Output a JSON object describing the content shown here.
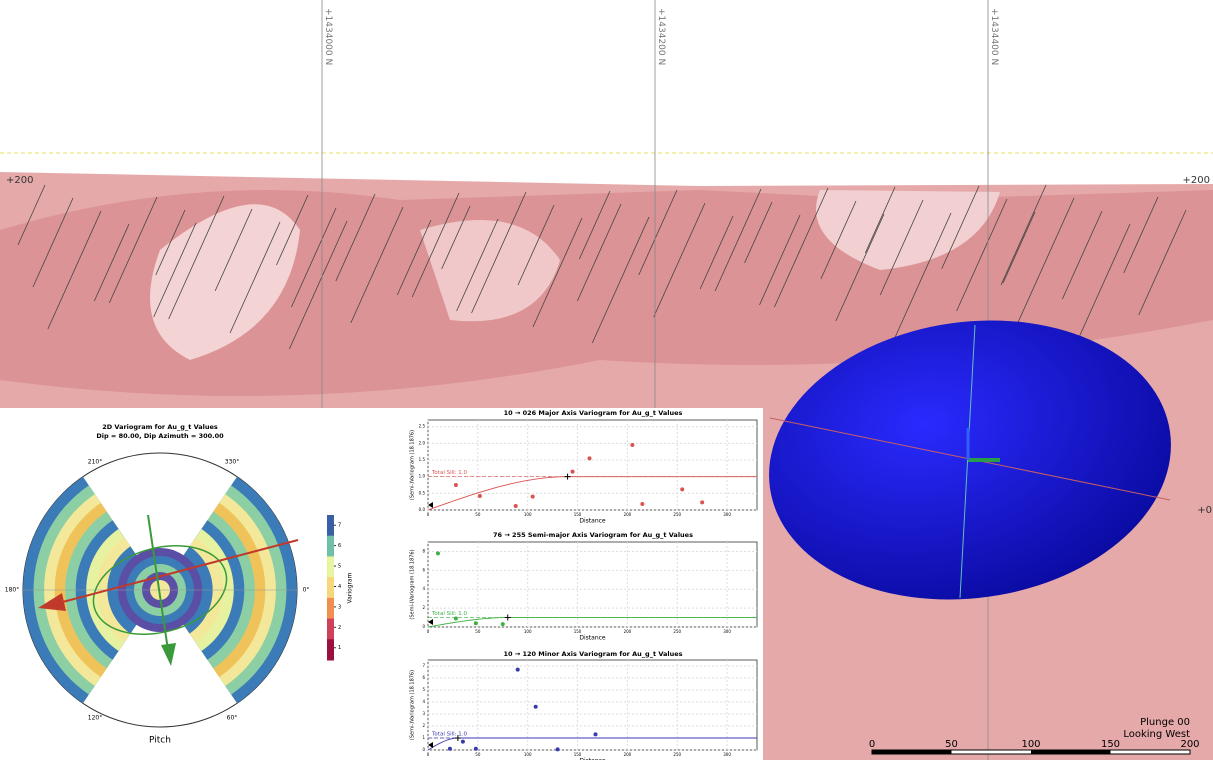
{
  "scene": {
    "northings": [
      "+1434000 N",
      "+1434200 N",
      "+1434400 N"
    ],
    "elev_top": "+200",
    "elev_mid": "+0",
    "scale_ticks": [
      0,
      50,
      100,
      150,
      200
    ],
    "plunge": "Plunge 00",
    "looking": "Looking West"
  },
  "polar": {
    "title": "2D Variogram for Au_g_t Values",
    "subtitle": "Dip = 80.00, Dip Azimuth = 300.00",
    "angles": [
      "210°",
      "330°",
      "180°",
      "0°",
      "120°",
      "60°"
    ],
    "xlabel": "Pitch",
    "colorbar_label": "Variogram",
    "colorbar_lim": [
      0.4,
      7.5
    ],
    "colorbar_ticks": [
      1,
      2,
      3,
      4,
      5,
      6,
      7
    ]
  },
  "chart_data": [
    {
      "type": "scatter",
      "title": "10 → 026 Major Axis Variogram for Au_g_t Values",
      "xlabel": "Distance",
      "ylabel": "(Semi-)Variogram (18.1876)",
      "sill_label": "Total Sill: 1.0",
      "color": "#d9534f",
      "sill": 1,
      "range": 140,
      "x": [
        28,
        52,
        88,
        105,
        145,
        162,
        205,
        215,
        255,
        275
      ],
      "values": [
        0.75,
        0.42,
        0.12,
        0.4,
        1.15,
        1.55,
        1.95,
        0.18,
        0.62,
        0.23
      ],
      "xlim": [
        0,
        330
      ],
      "ylim": [
        0,
        2.7
      ],
      "xticks": [
        0,
        50,
        100,
        150,
        200,
        250,
        300
      ],
      "yticks": [
        {
          "value": 0,
          "label": "0.0"
        },
        0.5,
        {
          "value": 1,
          "label": "1.0"
        },
        1.5,
        {
          "value": 2,
          "label": "2.0"
        },
        2.5
      ]
    },
    {
      "type": "scatter",
      "title": "76 → 255 Semi-major Axis Variogram for Au_g_t Values",
      "xlabel": "Distance",
      "ylabel": "(Semi-)Variogram (18.1876)",
      "sill_label": "Total Sill: 1.0",
      "color": "#3cb043",
      "sill": 1,
      "range": 80,
      "x": [
        10,
        28,
        48,
        75
      ],
      "values": [
        7.8,
        0.9,
        0.4,
        0.3
      ],
      "xlim": [
        0,
        330
      ],
      "ylim": [
        0,
        9
      ],
      "xticks": [
        0,
        50,
        100,
        150,
        200,
        250,
        300
      ],
      "yticks": [
        0,
        2,
        4,
        6,
        8
      ]
    },
    {
      "type": "scatter",
      "title": "10 → 120 Minor Axis Variogram for Au_g_t Values",
      "xlabel": "Distance",
      "ylabel": "(Semi-)Variogram (18.1876)",
      "sill_label": "Total Sill: 1.0",
      "color": "#3a3ab0",
      "sill": 1,
      "range": 30,
      "x": [
        22,
        35,
        48,
        90,
        108,
        130,
        168
      ],
      "values": [
        0.1,
        0.7,
        0.1,
        6.7,
        3.6,
        0.05,
        1.3
      ],
      "xlim": [
        0,
        330
      ],
      "ylim": [
        0,
        7.5
      ],
      "xticks": [
        0,
        50,
        100,
        150,
        200,
        250,
        300
      ],
      "yticks": [
        0,
        1,
        2,
        3,
        4,
        5,
        6,
        7
      ]
    }
  ]
}
